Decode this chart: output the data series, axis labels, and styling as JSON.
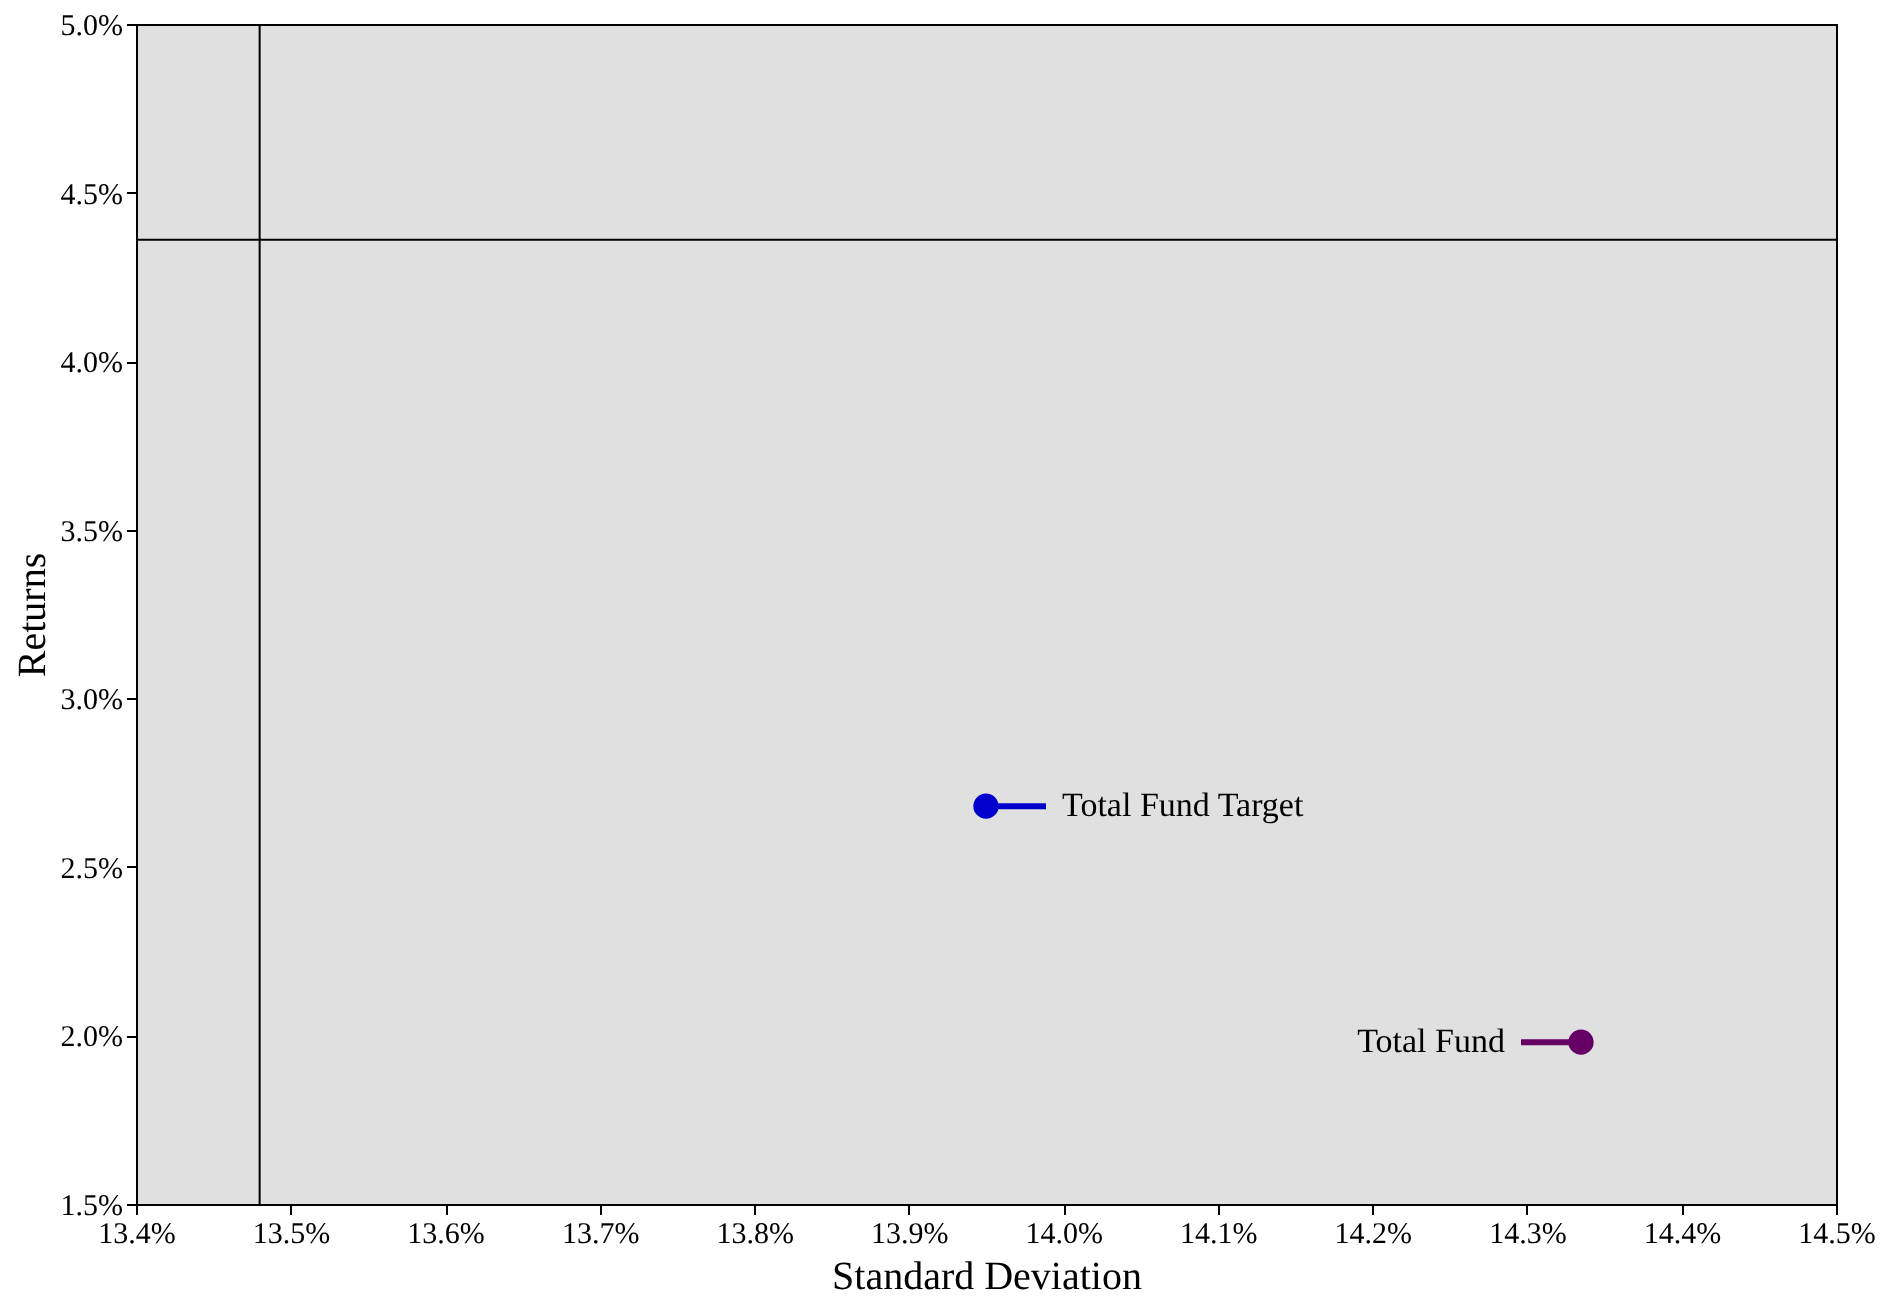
{
  "chart_data": {
    "type": "scatter",
    "xlabel": "Standard Deviation",
    "ylabel": "Returns",
    "series": [
      {
        "name": "Total Fund Target",
        "color": "#0000cc",
        "x": [
          13.95
        ],
        "values": [
          2.68
        ]
      },
      {
        "name": "Total Fund",
        "color": "#660066",
        "x": [
          14.335
        ],
        "values": [
          1.98
        ]
      }
    ],
    "xlim": [
      13.4,
      14.5
    ],
    "xticks": [
      {
        "value": 13.4,
        "label": "13.4%"
      },
      {
        "value": 13.5,
        "label": "13.5%"
      },
      {
        "value": 13.6,
        "label": "13.6%"
      },
      {
        "value": 13.7,
        "label": "13.7%"
      },
      {
        "value": 13.8,
        "label": "13.8%"
      },
      {
        "value": 13.9,
        "label": "13.9%"
      },
      {
        "value": 14.0,
        "label": "14.0%"
      },
      {
        "value": 14.1,
        "label": "14.1%"
      },
      {
        "value": 14.2,
        "label": "14.2%"
      },
      {
        "value": 14.3,
        "label": "14.3%"
      },
      {
        "value": 14.4,
        "label": "14.4%"
      },
      {
        "value": 14.5,
        "label": "14.5%"
      }
    ],
    "ylim": [
      1.5,
      5.0
    ],
    "yticks": [
      {
        "value": 1.5,
        "label": "1.5%"
      },
      {
        "value": 2.0,
        "label": "2.0%"
      },
      {
        "value": 2.5,
        "label": "2.5%"
      },
      {
        "value": 3.0,
        "label": "3.0%"
      },
      {
        "value": 3.5,
        "label": "3.5%"
      },
      {
        "value": 4.0,
        "label": "4.0%"
      },
      {
        "value": 4.5,
        "label": "4.5%"
      },
      {
        "value": 5.0,
        "label": "5.0%"
      }
    ],
    "ref_lines": [
      {
        "axis": "x",
        "value": 13.48,
        "color": "#000000"
      },
      {
        "axis": "y",
        "value": 4.36,
        "color": "#000000"
      }
    ],
    "grid": false,
    "marker": "circle"
  }
}
